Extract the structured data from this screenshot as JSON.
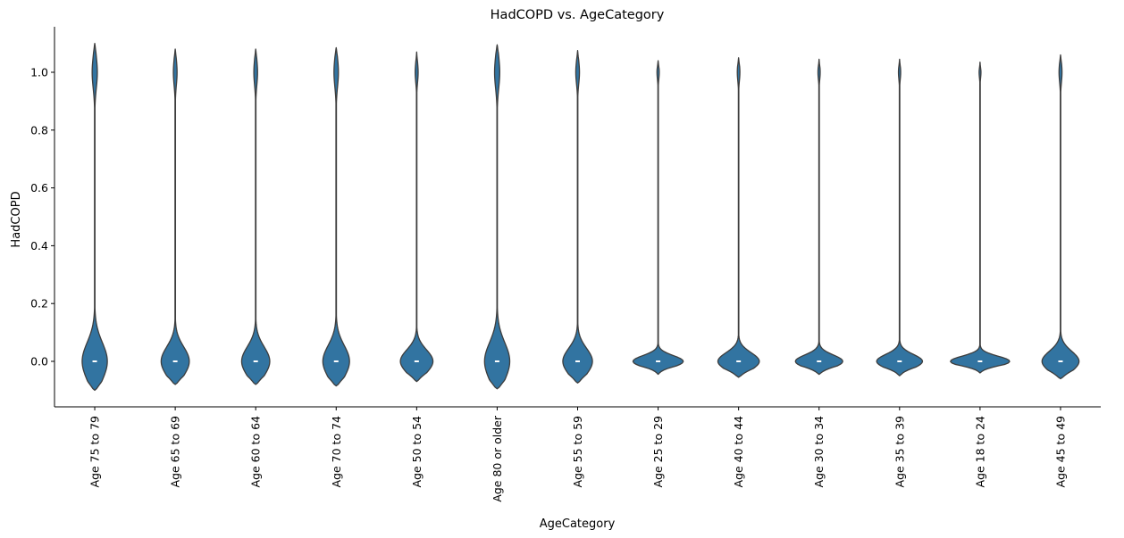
{
  "chart_data": {
    "type": "violin",
    "title": "HadCOPD vs. AgeCategory",
    "xlabel": "AgeCategory",
    "ylabel": "HadCOPD",
    "ylim": [
      -0.155,
      1.155
    ],
    "yticks": [
      "0.0",
      "0.2",
      "0.4",
      "0.6",
      "0.8",
      "1.0"
    ],
    "ytick_values": [
      0.0,
      0.2,
      0.4,
      0.6,
      0.8,
      1.0
    ],
    "color": "#3274a1",
    "edge_color": "#3d3d3d",
    "grid": false,
    "categories": [
      "Age 75 to 79",
      "Age 65 to 69",
      "Age 60 to 64",
      "Age 70 to 74",
      "Age 50 to 54",
      "Age 80 or older",
      "Age 55 to 59",
      "Age 25 to 29",
      "Age 40 to 44",
      "Age 30 to 34",
      "Age 35 to 39",
      "Age 18 to 24",
      "Age 45 to 49"
    ],
    "violins": [
      {
        "category": "Age 75 to 79",
        "median": 0.0,
        "min": -0.1,
        "max": 1.1,
        "bottom_width": 0.34,
        "top_width": 0.07,
        "bottom_spread": 0.065,
        "top_spread": 0.055
      },
      {
        "category": "Age 65 to 69",
        "median": 0.0,
        "min": -0.08,
        "max": 1.08,
        "bottom_width": 0.38,
        "top_width": 0.05,
        "bottom_spread": 0.05,
        "top_spread": 0.045
      },
      {
        "category": "Age 60 to 64",
        "median": 0.0,
        "min": -0.08,
        "max": 1.08,
        "bottom_width": 0.38,
        "top_width": 0.05,
        "bottom_spread": 0.05,
        "top_spread": 0.045
      },
      {
        "category": "Age 70 to 74",
        "median": 0.0,
        "min": -0.085,
        "max": 1.085,
        "bottom_width": 0.36,
        "top_width": 0.06,
        "bottom_spread": 0.055,
        "top_spread": 0.05
      },
      {
        "category": "Age 50 to 54",
        "median": 0.0,
        "min": -0.07,
        "max": 1.07,
        "bottom_width": 0.44,
        "top_width": 0.04,
        "bottom_spread": 0.04,
        "top_spread": 0.035
      },
      {
        "category": "Age 80 or older",
        "median": 0.0,
        "min": -0.095,
        "max": 1.095,
        "bottom_width": 0.34,
        "top_width": 0.07,
        "bottom_spread": 0.065,
        "top_spread": 0.055
      },
      {
        "category": "Age 55 to 59",
        "median": 0.0,
        "min": -0.075,
        "max": 1.075,
        "bottom_width": 0.4,
        "top_width": 0.05,
        "bottom_spread": 0.045,
        "top_spread": 0.04
      },
      {
        "category": "Age 25 to 29",
        "median": 0.0,
        "min": -0.045,
        "max": 1.04,
        "bottom_width": 0.68,
        "top_width": 0.03,
        "bottom_spread": 0.02,
        "top_spread": 0.025
      },
      {
        "category": "Age 40 to 44",
        "median": 0.0,
        "min": -0.055,
        "max": 1.05,
        "bottom_width": 0.56,
        "top_width": 0.035,
        "bottom_spread": 0.03,
        "top_spread": 0.03
      },
      {
        "category": "Age 30 to 34",
        "median": 0.0,
        "min": -0.045,
        "max": 1.045,
        "bottom_width": 0.64,
        "top_width": 0.03,
        "bottom_spread": 0.022,
        "top_spread": 0.025
      },
      {
        "category": "Age 35 to 39",
        "median": 0.0,
        "min": -0.05,
        "max": 1.045,
        "bottom_width": 0.62,
        "top_width": 0.03,
        "bottom_spread": 0.024,
        "top_spread": 0.025
      },
      {
        "category": "Age 18 to 24",
        "median": 0.0,
        "min": -0.04,
        "max": 1.035,
        "bottom_width": 0.8,
        "top_width": 0.025,
        "bottom_spread": 0.018,
        "top_spread": 0.02
      },
      {
        "category": "Age 45 to 49",
        "median": 0.0,
        "min": -0.06,
        "max": 1.06,
        "bottom_width": 0.5,
        "top_width": 0.04,
        "bottom_spread": 0.035,
        "top_spread": 0.035
      }
    ]
  }
}
